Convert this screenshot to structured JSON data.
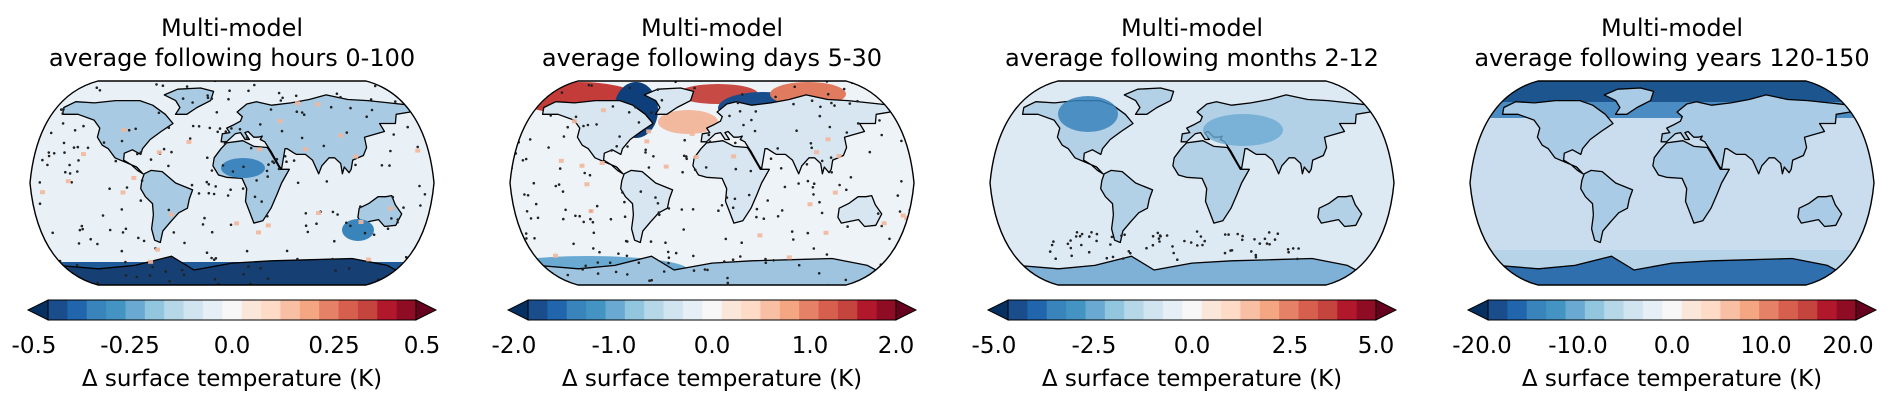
{
  "figure": {
    "panels": [
      {
        "title_line1": "Multi-model",
        "title_line2": "average following hours 0-100",
        "colorbar_label": "Δ surface temperature (K)",
        "ticks": [
          "-0.5",
          "-0.25",
          "0.0",
          "0.25",
          "0.5"
        ],
        "range": [
          -0.5,
          0.5
        ]
      },
      {
        "title_line1": "Multi-model",
        "title_line2": "average following days 5-30",
        "colorbar_label": "Δ surface temperature (K)",
        "ticks": [
          "-2.0",
          "-1.0",
          "0.0",
          "1.0",
          "2.0"
        ],
        "range": [
          -2.0,
          2.0
        ]
      },
      {
        "title_line1": "Multi-model",
        "title_line2": "average following months 2-12",
        "colorbar_label": "Δ surface temperature (K)",
        "ticks": [
          "-5.0",
          "-2.5",
          "0.0",
          "2.5",
          "5.0"
        ],
        "range": [
          -5.0,
          5.0
        ]
      },
      {
        "title_line1": "Multi-model",
        "title_line2": "average following years 120-150",
        "colorbar_label": "Δ surface temperature (K)",
        "ticks": [
          "-20.0",
          "-10.0",
          "0.0",
          "10.0",
          "20.0"
        ],
        "range": [
          -20.0,
          20.0
        ]
      }
    ],
    "colormap": [
      "#053061",
      "#1a4d8c",
      "#2166ac",
      "#3a84bc",
      "#4393c3",
      "#6aaad2",
      "#92c5de",
      "#b6d7e8",
      "#d1e5f0",
      "#e6eff6",
      "#f7f7f7",
      "#fbe6da",
      "#fddbc7",
      "#f8bfa4",
      "#f4a582",
      "#e58166",
      "#d6604d",
      "#c5443e",
      "#b2182b",
      "#8f0c25",
      "#67001f"
    ]
  }
}
